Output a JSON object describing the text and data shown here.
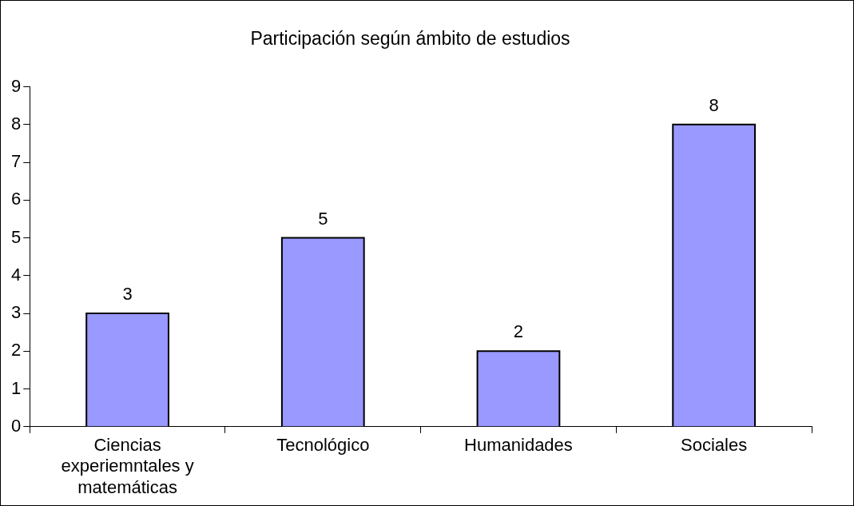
{
  "chart_data": {
    "type": "bar",
    "title": "Participación según ámbito de estudios",
    "categories": [
      "Ciencias experiemntales y matemáticas",
      "Tecnológico",
      "Humanidades",
      "Sociales"
    ],
    "values": [
      3,
      5,
      2,
      8
    ],
    "color": "#9999ff",
    "ylim": [
      0,
      9
    ],
    "yticks": [
      0,
      1,
      2,
      3,
      4,
      5,
      6,
      7,
      8,
      9
    ],
    "grid": false,
    "data_labels": true,
    "legend": false
  }
}
